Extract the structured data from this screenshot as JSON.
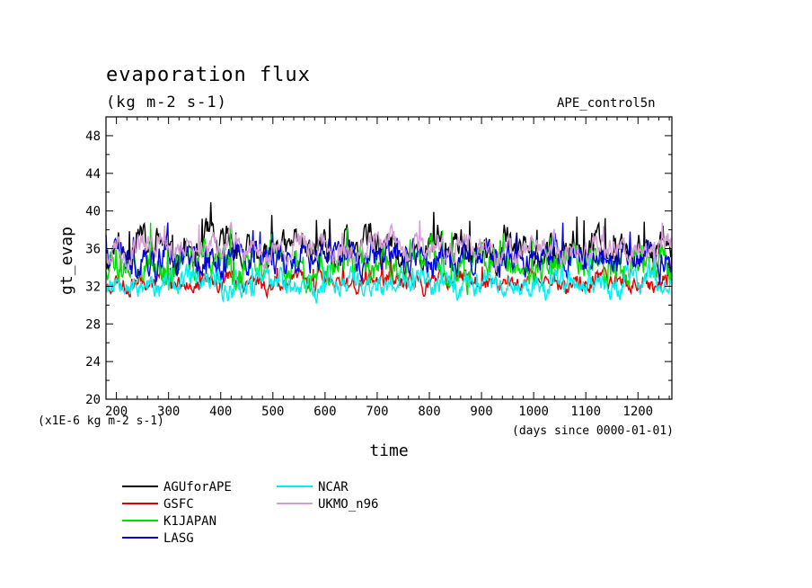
{
  "chart_data": {
    "type": "line",
    "title": "evaporation flux",
    "subtitle": "(kg m-2 s-1)",
    "experiment": "APE_control5n",
    "xlabel": "time",
    "ylabel": "gt_evap",
    "x_units": "(days since 0000-01-01)",
    "y_scale_note": "(x1E-6 kg m-2 s-1)",
    "xlim": [
      180,
      1265
    ],
    "ylim": [
      20,
      50
    ],
    "x_ticks": [
      200,
      300,
      400,
      500,
      600,
      700,
      800,
      900,
      1000,
      1100,
      1200
    ],
    "y_ticks": [
      20,
      24,
      28,
      32,
      36,
      40,
      44,
      48
    ],
    "series": [
      {
        "name": "AGUforAPE",
        "color": "#000000",
        "mean": 36.0,
        "amp": 1.5,
        "noise": 1.3,
        "seed": 11
      },
      {
        "name": "GSFC",
        "color": "#e00000",
        "mean": 32.5,
        "amp": 0.6,
        "noise": 0.7,
        "seed": 23
      },
      {
        "name": "K1JAPAN",
        "color": "#00dd00",
        "mean": 34.3,
        "amp": 1.2,
        "noise": 1.4,
        "seed": 37
      },
      {
        "name": "LASG",
        "color": "#0000e0",
        "mean": 35.0,
        "amp": 1.0,
        "noise": 1.2,
        "seed": 41
      },
      {
        "name": "NCAR",
        "color": "#00eeee",
        "mean": 32.3,
        "amp": 0.7,
        "noise": 1.0,
        "seed": 53
      },
      {
        "name": "UKMO_n96",
        "color": "#d49ed4",
        "mean": 36.1,
        "amp": 0.9,
        "noise": 1.0,
        "seed": 67
      }
    ]
  }
}
